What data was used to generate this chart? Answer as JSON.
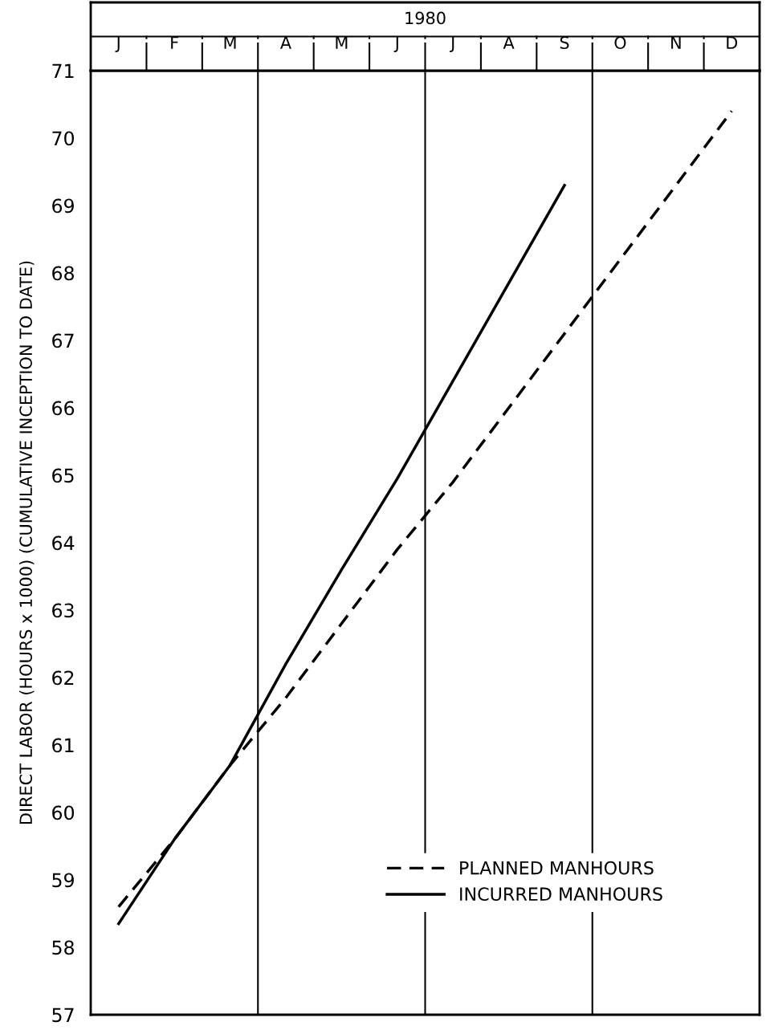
{
  "chart_data": {
    "type": "line",
    "title": "1980",
    "ylabel": "DIRECT LABOR (HOURS x 1000) (CUMULATIVE INCEPTION TO DATE)",
    "categories": [
      "J",
      "F",
      "M",
      "A",
      "M",
      "J",
      "J",
      "A",
      "S",
      "O",
      "N",
      "D"
    ],
    "ylim": [
      57,
      71
    ],
    "yticks": [
      57,
      58,
      59,
      60,
      61,
      62,
      63,
      64,
      65,
      66,
      67,
      68,
      69,
      70,
      71
    ],
    "series": [
      {
        "name": "PLANNED MANHOURS",
        "color": "#000000",
        "line_style": "dashed",
        "values": [
          58.6,
          59.6,
          60.7,
          61.7,
          62.8,
          63.9,
          64.9,
          66.0,
          67.1,
          68.2,
          69.3,
          70.4
        ]
      },
      {
        "name": "INCURRED MANHOURS",
        "color": "#000000",
        "line_style": "solid",
        "values": [
          58.35,
          59.6,
          60.7,
          62.2,
          63.6,
          64.95,
          66.4,
          67.85,
          69.3,
          null,
          null,
          null
        ]
      }
    ],
    "legend": "bottom right",
    "grid": false
  }
}
